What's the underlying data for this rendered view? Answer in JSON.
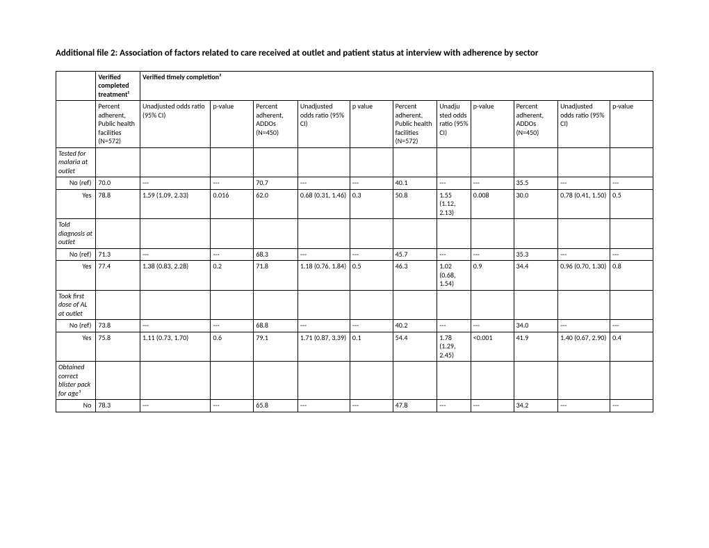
{
  "title": "Additional file 2: Association of factors related to care received at outlet and patient status at interview with adherence by sector",
  "top_headers": {
    "col1": "Verified completed treatment¹",
    "col2": "Verified timely completion²"
  },
  "headers": [
    "",
    "Percent adherent, Public health facilities (N=572)",
    "Unadjusted odds ratio (95% CI)",
    "p-value",
    "Percent adherent, ADDOs (N=450)",
    "Unadjusted odds ratio (95% CI)",
    "p value",
    "Percent adherent, Public health facilities (N=572)",
    "Unadju sted odds ratio (95% CI)",
    "p-value",
    "Percent adherent, ADDOs (N=450)",
    "Unadjusted odds ratio (95% CI)",
    "p-value"
  ],
  "sections": [
    {
      "label": "Tested for malaria at outlet",
      "rows": [
        {
          "label": "No (ref)",
          "cells": [
            "70.0",
            "---",
            "---",
            "70.7",
            "---",
            "---",
            "40.1",
            "---",
            "---",
            "35.5",
            "---",
            "---"
          ]
        },
        {
          "label": "Yes",
          "cells": [
            "78.8",
            "1.59 (1.09, 2.33)",
            "0.016",
            "62.0",
            "0.68 (0.31, 1.46)",
            "0.3",
            "50.8",
            "1.55 (1.12, 2.13)",
            "0.008",
            "30.0",
            "0.78 (0.41, 1.50)",
            "0.5"
          ]
        }
      ]
    },
    {
      "label": "Told diagnosis at outlet",
      "rows": [
        {
          "label": "No (ref)",
          "cells": [
            "71.3",
            "---",
            "---",
            "68.3",
            "---",
            "---",
            "45.7",
            "---",
            "---",
            "35.3",
            "---",
            "---"
          ]
        },
        {
          "label": "Yes",
          "cells": [
            "77.4",
            "1.38 (0.83, 2.28)",
            "0.2",
            "71.8",
            "1.18 (0.76, 1.84)",
            "0.5",
            "46.3",
            "1.02 (0.68, 1.54)",
            "0.9",
            "34.4",
            "0.96 (0.70, 1.30)",
            "0.8"
          ]
        }
      ]
    },
    {
      "label": "Took first dose of AL at outlet",
      "rows": [
        {
          "label": "No (ref)",
          "cells": [
            "73.8",
            "---",
            "---",
            "68.8",
            "---",
            "---",
            "40.2",
            "---",
            "---",
            "34.0",
            "---",
            "---"
          ]
        },
        {
          "label": "Yes",
          "cells": [
            "75.8",
            "1.11 (0.73, 1.70)",
            "0.6",
            "79.1",
            "1.71 (0.87, 3.39)",
            "0.1",
            "54.4",
            "1.78 (1.29, 2.45)",
            "<0.001",
            "41.9",
            "1.40 (0.67, 2.90)",
            "0.4"
          ]
        }
      ]
    },
    {
      "label": "Obtained correct blister pack for age³",
      "rows": [
        {
          "label": "No",
          "cells": [
            "78.3",
            "---",
            "---",
            "65.8",
            "---",
            "---",
            "47.8",
            "---",
            "---",
            "34.2",
            "---",
            "---"
          ]
        }
      ]
    }
  ]
}
